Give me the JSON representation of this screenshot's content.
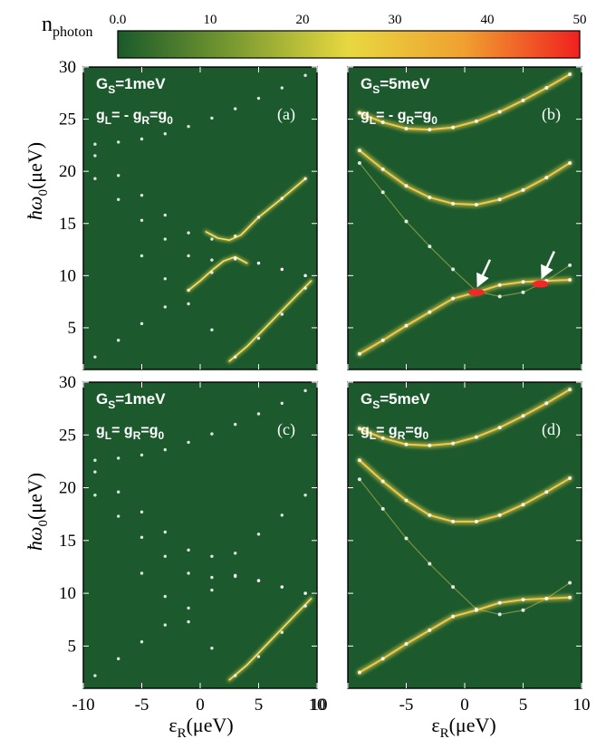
{
  "colorbar": {
    "label_main": "n",
    "label_sub": "photon",
    "ticks": [
      "0.0",
      "10",
      "20",
      "30",
      "40",
      "50"
    ],
    "range": [
      0,
      50
    ],
    "stops": [
      "#1a5a2a",
      "#8a9a30",
      "#e8d840",
      "#f0a030",
      "#f02020"
    ]
  },
  "axes": {
    "ylabel_main": "ħω",
    "ylabel_sub": "0",
    "ylabel_unit": "(μeV)",
    "xlabel_main": "ε",
    "xlabel_sub": "R",
    "xlabel_unit": "(μeV)",
    "x_ticks": [
      "-10",
      "-5",
      "0",
      "5",
      "10"
    ],
    "y_ticks": [
      "5",
      "10",
      "15",
      "20",
      "25",
      "30"
    ],
    "xlim": [
      -10,
      10
    ],
    "ylim": [
      1,
      30
    ]
  },
  "colors": {
    "background": "#1c5a2e",
    "dot": "#ffffff",
    "line_glow": "#e8d040",
    "hot": "#f02828"
  },
  "panels": [
    {
      "id": "a",
      "letter": "(a)",
      "G_text": "G",
      "G_sub": "S",
      "G_val": "=1meV",
      "g_text": "g",
      "g_sub1": "L",
      "g_mid": "= - g",
      "g_sub2": "R",
      "g_end": "=g",
      "g_sub3": "0"
    },
    {
      "id": "b",
      "letter": "(b)",
      "G_text": "G",
      "G_sub": "S",
      "G_val": "=5meV",
      "g_text": "g",
      "g_sub1": "L",
      "g_mid": "= - g",
      "g_sub2": "R",
      "g_end": "=g",
      "g_sub3": "0"
    },
    {
      "id": "c",
      "letter": "(c)",
      "G_text": "G",
      "G_sub": "S",
      "G_val": "=1meV",
      "g_text": "g",
      "g_sub1": "L",
      "g_mid": "= g",
      "g_sub2": "R",
      "g_end": "=g",
      "g_sub3": "0"
    },
    {
      "id": "d",
      "letter": "(d)",
      "G_text": "G",
      "G_sub": "S",
      "G_val": "=5meV",
      "g_text": "g",
      "g_sub1": "L",
      "g_mid": "= g",
      "g_sub2": "R",
      "g_end": "=g",
      "g_sub3": "0"
    }
  ],
  "chart_data": {
    "type": "heatmap",
    "title": "",
    "xlabel": "εR(μeV)",
    "ylabel": "ħω0(μeV)",
    "xlim": [
      -10,
      10
    ],
    "ylim": [
      1,
      30
    ],
    "colorbar_range": [
      0,
      50
    ],
    "panels": [
      {
        "label": "(a)",
        "dotted_series": [
          {
            "x": [
              -9,
              -7,
              -5,
              -3,
              -1,
              1,
              3,
              5,
              7,
              9
            ],
            "y": [
              22.6,
              22.8,
              23.1,
              23.6,
              24.3,
              25.1,
              26.0,
              27.0,
              28.0,
              29.2
            ]
          },
          {
            "x": [
              -9,
              -7,
              -5,
              -3,
              -1,
              1,
              3,
              5,
              7,
              9
            ],
            "y": [
              21.5,
              19.6,
              17.7,
              15.8,
              14.1,
              13.5,
              13.8,
              15.6,
              17.4,
              19.3
            ]
          },
          {
            "x": [
              -9,
              -7,
              -5,
              -3,
              -1,
              1,
              3,
              5,
              7,
              9
            ],
            "y": [
              19.3,
              17.3,
              15.3,
              13.5,
              11.9,
              11.5,
              11.6,
              11.2,
              10.6,
              10.0
            ]
          },
          {
            "x": [
              -9,
              -7,
              -5,
              -3,
              -1,
              1,
              3,
              5,
              7,
              9
            ],
            "y": [
              2.2,
              3.8,
              5.4,
              7.0,
              8.6,
              10.3,
              11.7,
              11.2,
              10.6,
              10.0
            ]
          },
          {
            "x": [
              -5,
              -3,
              -1,
              1,
              3,
              5,
              7,
              9
            ],
            "y": [
              11.9,
              9.7,
              7.3,
              4.8,
              2.2,
              4.0,
              6.3,
              8.8
            ]
          }
        ],
        "bright_lines": [
          {
            "x": [
              0.5,
              1.5,
              2.5,
              3.5,
              5.0,
              7.0,
              9.0
            ],
            "y": [
              14.2,
              13.6,
              13.4,
              13.9,
              15.6,
              17.4,
              19.3
            ],
            "intensity": 15
          },
          {
            "x": [
              -1,
              0,
              1,
              2,
              3,
              4
            ],
            "y": [
              8.6,
              9.5,
              10.5,
              11.4,
              11.8,
              11.2
            ],
            "intensity": 15
          },
          {
            "x": [
              2.5,
              4,
              6,
              8,
              9.5
            ],
            "y": [
              1.8,
              3.2,
              5.5,
              7.8,
              9.5
            ],
            "intensity": 10
          }
        ]
      },
      {
        "label": "(b)",
        "dotted_series": [
          {
            "x": [
              -9,
              -7,
              -5,
              -3,
              -1,
              1,
              3,
              5,
              7,
              9
            ],
            "y": [
              25.6,
              24.7,
              24.1,
              24.0,
              24.2,
              24.8,
              25.7,
              26.8,
              28.0,
              29.3
            ]
          },
          {
            "x": [
              -9,
              -7,
              -5,
              -3,
              -1,
              1,
              3,
              5,
              7,
              9
            ],
            "y": [
              22.0,
              20.2,
              18.6,
              17.5,
              16.9,
              16.8,
              17.3,
              18.2,
              19.4,
              20.8
            ]
          },
          {
            "x": [
              -9,
              -7,
              -5,
              -3,
              -1,
              1,
              3,
              5,
              7,
              9
            ],
            "y": [
              20.8,
              18.0,
              15.2,
              12.8,
              10.6,
              8.5,
              8.0,
              8.4,
              9.5,
              11.0
            ]
          },
          {
            "x": [
              -9,
              -7,
              -5,
              -3,
              -1,
              1,
              3,
              5,
              7,
              9
            ],
            "y": [
              2.5,
              3.8,
              5.2,
              6.5,
              7.8,
              8.4,
              9.1,
              9.4,
              9.5,
              9.6
            ]
          }
        ],
        "hot_spots": [
          {
            "x": 1.0,
            "y": 8.4,
            "intensity": 50
          },
          {
            "x": 6.5,
            "y": 9.2,
            "intensity": 45
          }
        ],
        "arrows": [
          {
            "x": 1.0,
            "y": 8.4
          },
          {
            "x": 6.5,
            "y": 9.2
          }
        ]
      },
      {
        "label": "(c)",
        "dotted_series": [
          {
            "x": [
              -9,
              -7,
              -5,
              -3,
              -1,
              1,
              3,
              5,
              7,
              9
            ],
            "y": [
              22.6,
              22.8,
              23.1,
              23.6,
              24.3,
              25.1,
              26.0,
              27.0,
              28.0,
              29.2
            ]
          },
          {
            "x": [
              -9,
              -7,
              -5,
              -3,
              -1,
              1,
              3,
              5,
              7,
              9
            ],
            "y": [
              21.5,
              19.6,
              17.7,
              15.8,
              14.1,
              13.5,
              13.8,
              15.6,
              17.4,
              19.3
            ]
          },
          {
            "x": [
              -9,
              -7,
              -5,
              -3,
              -1,
              1,
              3,
              5,
              7,
              9
            ],
            "y": [
              19.3,
              17.3,
              15.3,
              13.5,
              11.9,
              11.5,
              11.6,
              11.2,
              10.6,
              10.0
            ]
          },
          {
            "x": [
              -9,
              -7,
              -5,
              -3,
              -1,
              1,
              3,
              5,
              7,
              9
            ],
            "y": [
              2.2,
              3.8,
              5.4,
              7.0,
              8.6,
              10.3,
              11.7,
              11.2,
              10.6,
              10.0
            ]
          },
          {
            "x": [
              -5,
              -3,
              -1,
              1,
              3,
              5,
              7,
              9
            ],
            "y": [
              11.9,
              9.7,
              7.3,
              4.8,
              2.2,
              4.0,
              6.3,
              8.8
            ]
          }
        ],
        "bright_lines": [
          {
            "x": [
              2.5,
              4,
              6,
              8,
              9.5
            ],
            "y": [
              1.8,
              3.2,
              5.5,
              7.8,
              9.5
            ],
            "intensity": 12
          }
        ]
      },
      {
        "label": "(d)",
        "dotted_series": [
          {
            "x": [
              -9,
              -7,
              -5,
              -3,
              -1,
              1,
              3,
              5,
              7,
              9
            ],
            "y": [
              25.6,
              24.7,
              24.1,
              24.0,
              24.2,
              24.8,
              25.7,
              26.8,
              28.0,
              29.3
            ]
          },
          {
            "x": [
              -9,
              -7,
              -5,
              -3,
              -1,
              1,
              3,
              5,
              7,
              9
            ],
            "y": [
              22.6,
              20.6,
              18.8,
              17.4,
              16.8,
              16.8,
              17.4,
              18.4,
              19.6,
              20.9
            ]
          },
          {
            "x": [
              -9,
              -7,
              -5,
              -3,
              -1,
              1,
              3,
              5,
              7,
              9
            ],
            "y": [
              20.8,
              18.0,
              15.2,
              12.8,
              10.6,
              8.5,
              8.0,
              8.4,
              9.5,
              11.0
            ]
          },
          {
            "x": [
              -9,
              -7,
              -5,
              -3,
              -1,
              1,
              3,
              5,
              7,
              9
            ],
            "y": [
              2.5,
              3.8,
              5.2,
              6.5,
              7.8,
              8.4,
              9.1,
              9.4,
              9.5,
              9.6
            ]
          }
        ]
      }
    ]
  }
}
